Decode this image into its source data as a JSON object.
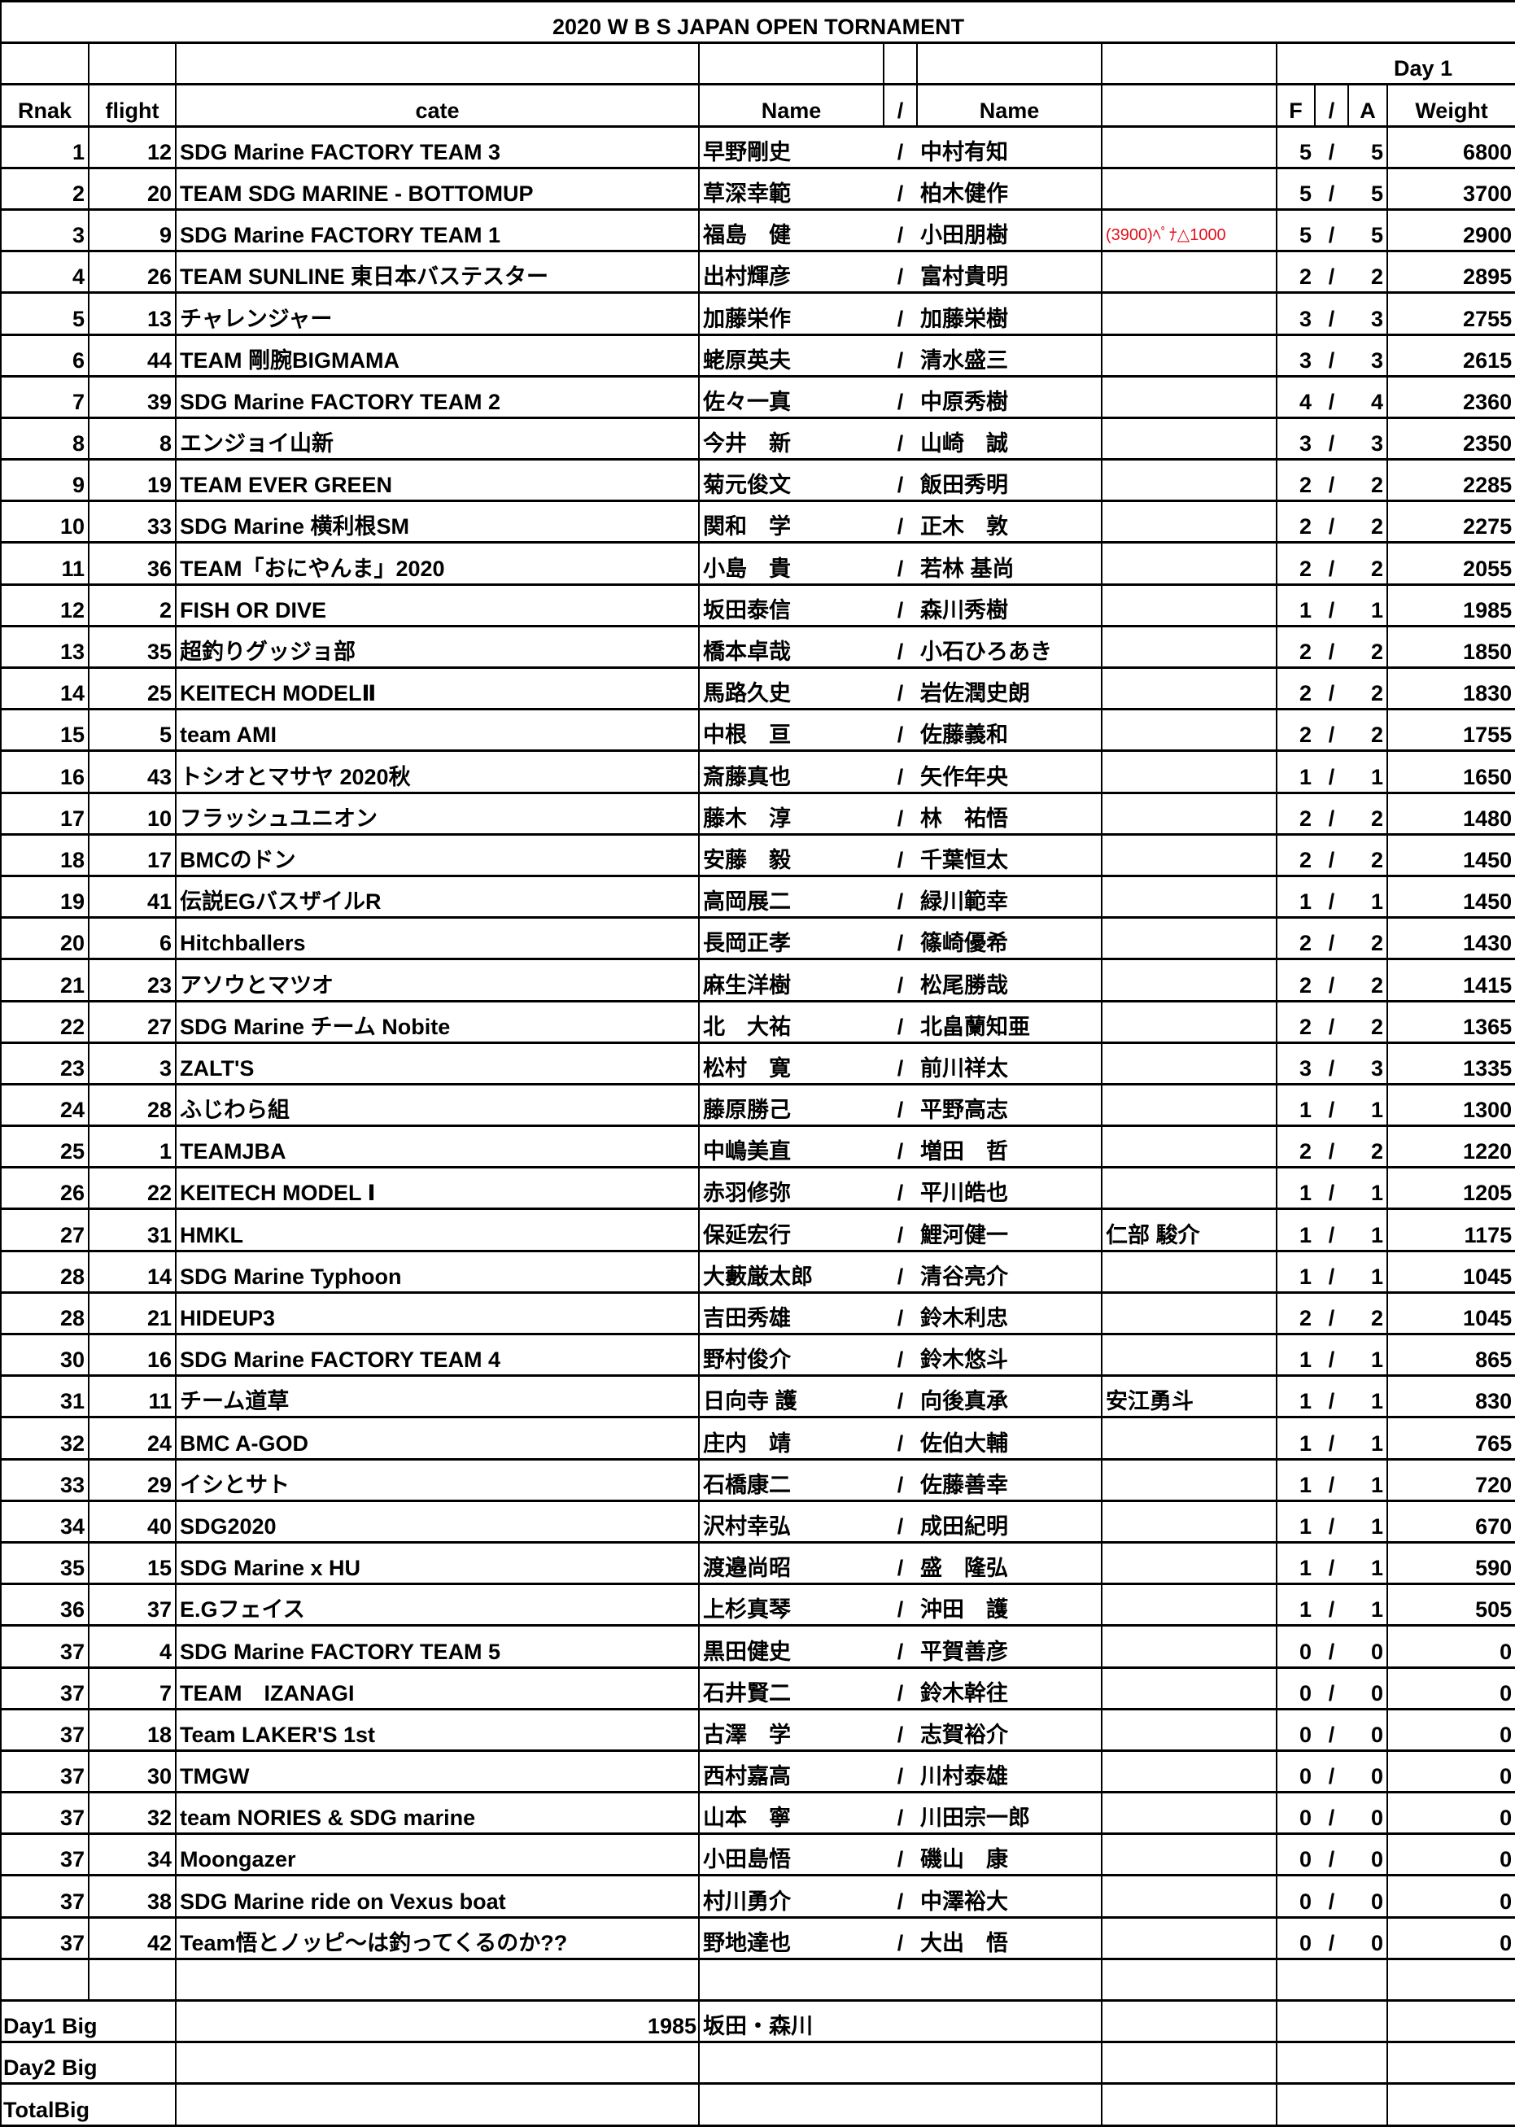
{
  "title": "2020 W B S JAPAN OPEN TORNAMENT",
  "header": {
    "day": "Day 1",
    "rank": "Rnak",
    "flight": "flight",
    "cate": "cate",
    "name1": "Name",
    "slash": "/",
    "name2": "Name",
    "f": "F",
    "fa_slash": "/",
    "a": "A",
    "weight": "Weight"
  },
  "note_color": "#e0101a",
  "rows": [
    {
      "rank": "1",
      "flight": "12",
      "cate": "SDG Marine FACTORY TEAM 3",
      "name1": "早野剛史",
      "name2": "中村有知",
      "note": "",
      "f": "5",
      "a": "5",
      "weight": "6800"
    },
    {
      "rank": "2",
      "flight": "20",
      "cate": "TEAM SDG MARINE - BOTTOMUP",
      "name1": "草深幸範",
      "name2": "柏木健作",
      "note": "",
      "f": "5",
      "a": "5",
      "weight": "3700"
    },
    {
      "rank": "3",
      "flight": "9",
      "cate": "SDG Marine FACTORY  TEAM 1",
      "name1": "福島　健",
      "name2": "小田朋樹",
      "note": "(3900)ﾍﾟﾅ△1000",
      "note_red": true,
      "f": "5",
      "a": "5",
      "weight": "2900"
    },
    {
      "rank": "4",
      "flight": "26",
      "cate": "TEAM SUNLINE 東日本バステスター",
      "name1": "出村輝彦",
      "name2": "富村貴明",
      "note": "",
      "f": "2",
      "a": "2",
      "weight": "2895"
    },
    {
      "rank": "5",
      "flight": "13",
      "cate": "チャレンジャー",
      "name1": "加藤栄作",
      "name2": "加藤栄樹",
      "note": "",
      "f": "3",
      "a": "3",
      "weight": "2755"
    },
    {
      "rank": "6",
      "flight": "44",
      "cate": "TEAM 剛腕BIGMAMA",
      "name1": "蛯原英夫",
      "name2": "清水盛三",
      "note": "",
      "f": "3",
      "a": "3",
      "weight": "2615"
    },
    {
      "rank": "7",
      "flight": "39",
      "cate": "SDG Marine FACTORY TEAM 2",
      "name1": "佐々一真",
      "name2": "中原秀樹",
      "note": "",
      "f": "4",
      "a": "4",
      "weight": "2360"
    },
    {
      "rank": "8",
      "flight": "8",
      "cate": "エンジョイ山新",
      "name1": "今井　新",
      "name2": "山崎　誠",
      "note": "",
      "f": "3",
      "a": "3",
      "weight": "2350"
    },
    {
      "rank": "9",
      "flight": "19",
      "cate": "TEAM EVER GREEN",
      "name1": "菊元俊文",
      "name2": "飯田秀明",
      "note": "",
      "f": "2",
      "a": "2",
      "weight": "2285"
    },
    {
      "rank": "10",
      "flight": "33",
      "cate": "SDG Marine 横利根SM",
      "name1": "関和　学",
      "name2": "正木　敦",
      "note": "",
      "f": "2",
      "a": "2",
      "weight": "2275"
    },
    {
      "rank": "11",
      "flight": "36",
      "cate": "TEAM「おにやんま」2020",
      "name1": "小島　貴",
      "name2": "若林 基尚",
      "note": "",
      "f": "2",
      "a": "2",
      "weight": "2055"
    },
    {
      "rank": "12",
      "flight": "2",
      "cate": "FISH OR DIVE",
      "name1": "坂田泰信",
      "name2": "森川秀樹",
      "note": "",
      "f": "1",
      "a": "1",
      "weight": "1985"
    },
    {
      "rank": "13",
      "flight": "35",
      "cate": "超釣りグッジョ部",
      "name1": "橋本卓哉",
      "name2": "小石ひろあき",
      "note": "",
      "f": "2",
      "a": "2",
      "weight": "1850"
    },
    {
      "rank": "14",
      "flight": "25",
      "cate": "KEITECH MODELⅡ",
      "name1": "馬路久史",
      "name2": "岩佐潤史朗",
      "note": "",
      "f": "2",
      "a": "2",
      "weight": "1830"
    },
    {
      "rank": "15",
      "flight": "5",
      "cate": "team AMI",
      "name1": "中根　亘",
      "name2": "佐藤義和",
      "note": "",
      "f": "2",
      "a": "2",
      "weight": "1755"
    },
    {
      "rank": "16",
      "flight": "43",
      "cate": "トシオとマサヤ 2020秋",
      "name1": "斎藤真也",
      "name2": "矢作年央",
      "note": "",
      "f": "1",
      "a": "1",
      "weight": "1650"
    },
    {
      "rank": "17",
      "flight": "10",
      "cate": "フラッシュユニオン",
      "name1": "藤木　淳",
      "name2": "林　祐悟",
      "note": "",
      "f": "2",
      "a": "2",
      "weight": "1480"
    },
    {
      "rank": "18",
      "flight": "17",
      "cate": "BMCのドン",
      "name1": "安藤　毅",
      "name2": "千葉恒太",
      "note": "",
      "f": "2",
      "a": "2",
      "weight": "1450"
    },
    {
      "rank": "19",
      "flight": "41",
      "cate": "伝説EGバスザイルR",
      "name1": "高岡展二",
      "name2": "緑川範幸",
      "note": "",
      "f": "1",
      "a": "1",
      "weight": "1450"
    },
    {
      "rank": "20",
      "flight": "6",
      "cate": "Hitchballers",
      "name1": "長岡正孝",
      "name2": "篠崎優希",
      "note": "",
      "f": "2",
      "a": "2",
      "weight": "1430"
    },
    {
      "rank": "21",
      "flight": "23",
      "cate": "アソウとマツオ",
      "name1": "麻生洋樹",
      "name2": "松尾勝哉",
      "note": "",
      "f": "2",
      "a": "2",
      "weight": "1415"
    },
    {
      "rank": "22",
      "flight": "27",
      "cate": "SDG Marine チーム Nobite",
      "name1": "北　大祐",
      "name2": "北畠蘭知亜",
      "note": "",
      "f": "2",
      "a": "2",
      "weight": "1365"
    },
    {
      "rank": "23",
      "flight": "3",
      "cate": "ZALT'S",
      "name1": "松村　寛",
      "name2": "前川祥太",
      "note": "",
      "f": "3",
      "a": "3",
      "weight": "1335"
    },
    {
      "rank": "24",
      "flight": "28",
      "cate": "ふじわら組",
      "name1": "藤原勝己",
      "name2": "平野高志",
      "note": "",
      "f": "1",
      "a": "1",
      "weight": "1300"
    },
    {
      "rank": "25",
      "flight": "1",
      "cate": "TEAMJBA",
      "name1": "中嶋美直",
      "name2": "増田　哲",
      "note": "",
      "f": "2",
      "a": "2",
      "weight": "1220"
    },
    {
      "rank": "26",
      "flight": "22",
      "cate": "KEITECH MODEL Ⅰ",
      "name1": "赤羽修弥",
      "name2": "平川皓也",
      "note": "",
      "f": "1",
      "a": "1",
      "weight": "1205"
    },
    {
      "rank": "27",
      "flight": "31",
      "cate": "HMKL",
      "name1": "保延宏行",
      "name2": "鯉河健一",
      "note": "仁部 駿介",
      "f": "1",
      "a": "1",
      "weight": "1175"
    },
    {
      "rank": "28",
      "flight": "14",
      "cate": "SDG Marine Typhoon",
      "name1": "大藪厳太郎",
      "name2": "清谷亮介",
      "note": "",
      "f": "1",
      "a": "1",
      "weight": "1045"
    },
    {
      "rank": "28",
      "flight": "21",
      "cate": "HIDEUP3",
      "name1": "吉田秀雄",
      "name2": "鈴木利忠",
      "note": "",
      "f": "2",
      "a": "2",
      "weight": "1045"
    },
    {
      "rank": "30",
      "flight": "16",
      "cate": "SDG Marine FACTORY  TEAM 4",
      "name1": "野村俊介",
      "name2": "鈴木悠斗",
      "note": "",
      "f": "1",
      "a": "1",
      "weight": "865"
    },
    {
      "rank": "31",
      "flight": "11",
      "cate": "チーム道草",
      "name1": "日向寺 護",
      "name2": "向後真承",
      "note": "安江勇斗",
      "f": "1",
      "a": "1",
      "weight": "830"
    },
    {
      "rank": "32",
      "flight": "24",
      "cate": "BMC A-GOD",
      "name1": "庄内　靖",
      "name2": "佐伯大輔",
      "note": "",
      "f": "1",
      "a": "1",
      "weight": "765"
    },
    {
      "rank": "33",
      "flight": "29",
      "cate": "イシとサト",
      "name1": "石橋康二",
      "name2": "佐藤善幸",
      "note": "",
      "f": "1",
      "a": "1",
      "weight": "720"
    },
    {
      "rank": "34",
      "flight": "40",
      "cate": "SDG2020",
      "name1": "沢村幸弘",
      "name2": "成田紀明",
      "note": "",
      "f": "1",
      "a": "1",
      "weight": "670"
    },
    {
      "rank": "35",
      "flight": "15",
      "cate": "SDG Marine x HU",
      "name1": "渡邉尚昭",
      "name2": "盛　隆弘",
      "note": "",
      "f": "1",
      "a": "1",
      "weight": "590"
    },
    {
      "rank": "36",
      "flight": "37",
      "cate": "E.Gフェイス",
      "name1": "上杉真琴",
      "name2": "沖田　護",
      "note": "",
      "f": "1",
      "a": "1",
      "weight": "505"
    },
    {
      "rank": "37",
      "flight": "4",
      "cate": "SDG Marine FACTORY  TEAM 5",
      "name1": "黒田健史",
      "name2": "平賀善彦",
      "note": "",
      "f": "0",
      "a": "0",
      "weight": "0"
    },
    {
      "rank": "37",
      "flight": "7",
      "cate": "TEAM　IZANAGI",
      "name1": "石井賢二",
      "name2": "鈴木幹往",
      "note": "",
      "f": "0",
      "a": "0",
      "weight": "0"
    },
    {
      "rank": "37",
      "flight": "18",
      "cate": "Team LAKER'S 1st",
      "name1": "古澤　学",
      "name2": "志賀裕介",
      "note": "",
      "f": "0",
      "a": "0",
      "weight": "0"
    },
    {
      "rank": "37",
      "flight": "30",
      "cate": "TMGW",
      "name1": "西村嘉高",
      "name2": "川村泰雄",
      "note": "",
      "f": "0",
      "a": "0",
      "weight": "0"
    },
    {
      "rank": "37",
      "flight": "32",
      "cate": "team NORIES & SDG marine",
      "name1": "山本　寧",
      "name2": "川田宗一郎",
      "note": "",
      "f": "0",
      "a": "0",
      "weight": "0"
    },
    {
      "rank": "37",
      "flight": "34",
      "cate": "Moongazer",
      "name1": "小田島悟",
      "name2": "磯山　康",
      "note": "",
      "f": "0",
      "a": "0",
      "weight": "0"
    },
    {
      "rank": "37",
      "flight": "38",
      "cate": "SDG Marine ride on Vexus boat",
      "name1": "村川勇介",
      "name2": "中澤裕大",
      "note": "",
      "f": "0",
      "a": "0",
      "weight": "0"
    },
    {
      "rank": "37",
      "flight": "42",
      "cate": "Team悟とノッピ～は釣ってくるのか??",
      "name1": "野地達也",
      "name2": "大出　悟",
      "note": "",
      "f": "0",
      "a": "0",
      "weight": "0"
    }
  ],
  "row_slash": "/",
  "footer": [
    {
      "label": "Day1  Big",
      "weight": "1985",
      "names": "坂田・森川"
    },
    {
      "label": "Day2  Big",
      "weight": "",
      "names": ""
    },
    {
      "label": "TotalBig",
      "weight": "",
      "names": ""
    }
  ]
}
